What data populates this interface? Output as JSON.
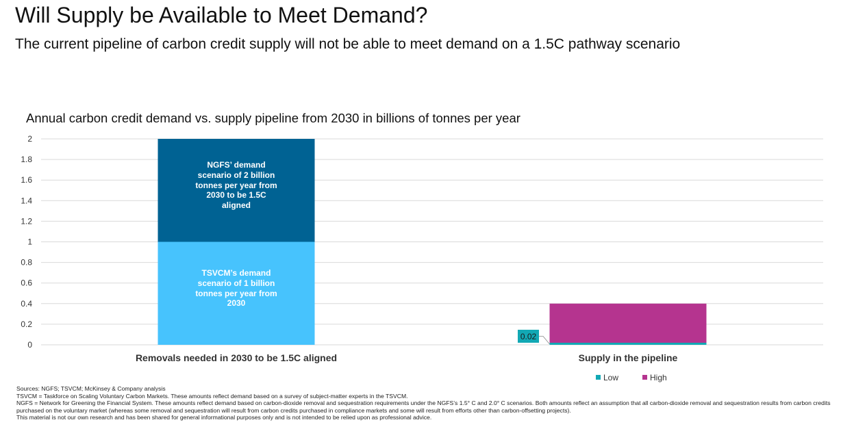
{
  "header": {
    "title": "Will Supply be Available to Meet Demand?",
    "subtitle": "The current pipeline of carbon credit supply will not be able to meet demand on a 1.5C pathway scenario"
  },
  "chart_data": {
    "type": "bar",
    "stacked": true,
    "title": "Annual carbon credit demand vs. supply pipeline from 2030 in billions of tonnes per year",
    "xlabel": "",
    "ylabel": "",
    "ylim": [
      0,
      2
    ],
    "yticks": [
      "0",
      "0.2",
      "0.4",
      "0.6",
      "0.8",
      "1",
      "1.2",
      "1.4",
      "1.6",
      "1.8",
      "2"
    ],
    "categories": [
      "Removals needed in 2030 to be 1.5C aligned",
      "Supply in the pipeline"
    ],
    "segments": [
      {
        "category": 0,
        "name": "TSVCM demand",
        "base": 0,
        "value": 1,
        "color": "#47c3fd",
        "label": "TSVCM’s demand scenario of 1 billion tonnes per year from 2030"
      },
      {
        "category": 0,
        "name": "NGFS demand",
        "base": 1,
        "value": 1,
        "color": "#006293",
        "label": "NGFS’ demand scenario of 2 billion tonnes per year from 2030 to be 1.5C aligned"
      },
      {
        "category": 1,
        "name": "Low",
        "base": 0,
        "value": 0.02,
        "color": "#12a8b4",
        "label": "0.02"
      },
      {
        "category": 1,
        "name": "High",
        "base": 0.02,
        "value": 0.38,
        "color": "#b5348f",
        "label": ""
      }
    ],
    "legend": [
      {
        "name": "Low",
        "color": "#12a8b4"
      },
      {
        "name": "High",
        "color": "#b5348f"
      }
    ],
    "legend_position": "bottom-right"
  },
  "footnotes": {
    "sources": "Sources: NGFS; TSVCM; McKinsey & Company analysis",
    "tsvcm": "TSVCM = Taskforce on Scaling Voluntary Carbon Markets. These amounts reflect demand based on a survey of subject-matter experts in the TSVCM.",
    "ngfs": "NGFS = Network for Greening the Financial System. These amounts reflect demand based on carbon-dioxide removal and sequestration requirements under the NGFS’s 1.5° C and 2.0° C scenarios. Both amounts reflect an assumption that all carbon-dioxide removal and sequestration results from carbon credits purchased on the voluntary market (whereas some removal and sequestration will result from carbon credits purchased in compliance markets and some will result from efforts other than carbon-offsetting projects).",
    "disclaimer": "This material is not our own research and has been shared for general informational purposes only and is not intended to be relied upon as professional advice."
  }
}
